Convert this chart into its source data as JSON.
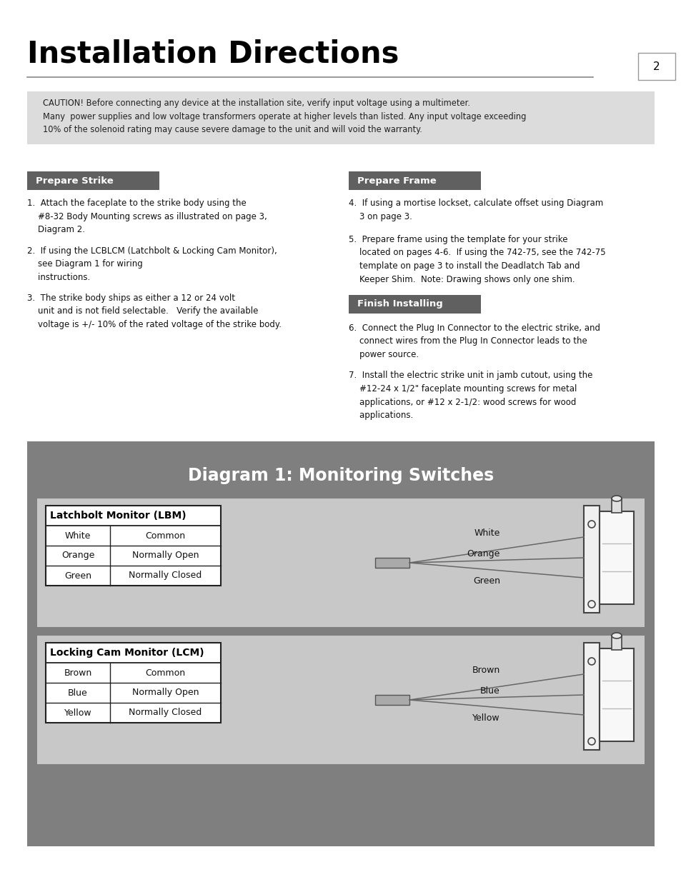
{
  "title": "Installation Directions",
  "page_num": "2",
  "bg_color": "#ffffff",
  "caution_bg": "#dcdcdc",
  "caution_text": "CAUTION! Before connecting any device at the installation site, verify input voltage using a multimeter.\nMany  power supplies and low voltage transformers operate at higher levels than listed. Any input voltage exceeding\n10% of the solenoid rating may cause severe damage to the unit and will void the warranty.",
  "section_header_bg": "#606060",
  "section_header_color": "#ffffff",
  "prepare_strike_header": "Prepare Strike",
  "prepare_frame_header": "Prepare Frame",
  "finish_installing_header": "Finish Installing",
  "left_items": [
    "1.  Attach the faceplate to the strike body using the\n    #8-32 Body Mounting screws as illustrated on page 3,\n    Diagram 2.",
    "2.  If using the LCBLCM (Latchbolt & Locking Cam Monitor),\n    see Diagram 1 for wiring\n    instructions.",
    "3.  The strike body ships as either a 12 or 24 volt\n    unit and is not field selectable.   Verify the available\n    voltage is +/- 10% of the rated voltage of the strike body."
  ],
  "right_items_a": [
    "4.  If using a mortise lockset, calculate offset using Diagram\n    3 on page 3.",
    "5.  Prepare frame using the template for your strike\n    located on pages 4-6.  If using the 742-75, see the 742-75\n    template on page 3 to install the Deadlatch Tab and\n    Keeper Shim.  Note: Drawing shows only one shim."
  ],
  "right_items_b": [
    "6.  Connect the Plug In Connector to the electric strike, and\n    connect wires from the Plug In Connector leads to the\n    power source.",
    "7.  Install the electric strike unit in jamb cutout, using the\n    #12-24 x 1/2\" faceplate mounting screws for metal\n    applications, or #12 x 2-1/2: wood screws for wood\n    applications."
  ],
  "diagram_bg": "#7f7f7f",
  "diagram_title": "Diagram 1: Monitoring Switches",
  "panel_bg": "#c8c8c8",
  "lbm_header": "Latchbolt Monitor (LBM)",
  "lbm_rows": [
    [
      "White",
      "Common"
    ],
    [
      "Orange",
      "Normally Open"
    ],
    [
      "Green",
      "Normally Closed"
    ]
  ],
  "lcm_header": "Locking Cam Monitor (LCM)",
  "lcm_rows": [
    [
      "Brown",
      "Common"
    ],
    [
      "Blue",
      "Normally Open"
    ],
    [
      "Yellow",
      "Normally Closed"
    ]
  ],
  "lbm_labels": [
    "White",
    "Orange",
    "Green"
  ],
  "lcm_labels": [
    "Brown",
    "Blue",
    "Yellow"
  ]
}
